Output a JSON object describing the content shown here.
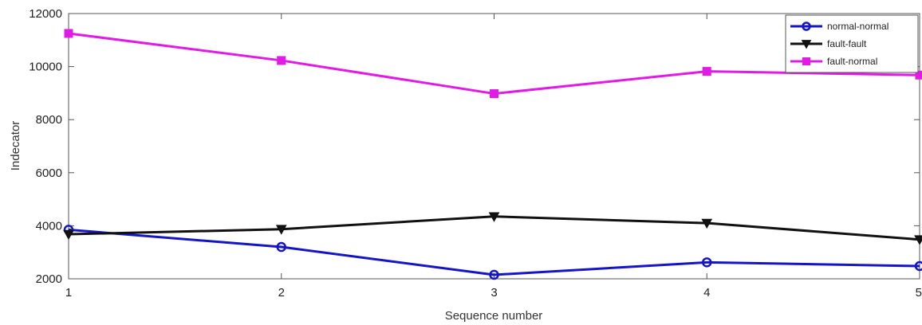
{
  "chart_data": {
    "type": "line",
    "title": "",
    "xlabel": "Sequence number",
    "ylabel": "Indecator",
    "x": [
      1,
      2,
      3,
      4,
      5
    ],
    "xlim": [
      1,
      5
    ],
    "ylim": [
      2000,
      12000
    ],
    "xticks": [
      "1",
      "2",
      "3",
      "4",
      "5"
    ],
    "yticks": [
      "2000",
      "4000",
      "6000",
      "8000",
      "10000",
      "12000"
    ],
    "grid": false,
    "legend_position": "top-right",
    "series": [
      {
        "name": "normal-normal",
        "color": "#1515c8",
        "marker": "circle",
        "values": [
          3850,
          3200,
          2150,
          2620,
          2480
        ]
      },
      {
        "name": "fault-fault",
        "color": "#111111",
        "marker": "triangle-down",
        "values": [
          3680,
          3870,
          4350,
          4100,
          3480
        ]
      },
      {
        "name": "fault-normal",
        "color": "#e21ae6",
        "marker": "square",
        "values": [
          11250,
          10230,
          8980,
          9820,
          9680
        ]
      }
    ]
  }
}
